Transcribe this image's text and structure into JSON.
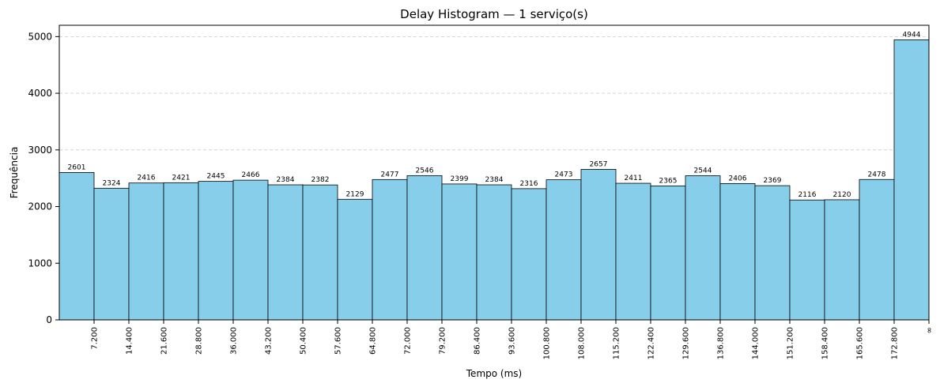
{
  "chart_data": {
    "type": "bar",
    "title": "Delay Histogram — 1 serviço(s)",
    "xlabel": "Tempo (ms)",
    "ylabel": "Frequência",
    "ylim": [
      0,
      5200
    ],
    "yticks": [
      0,
      1000,
      2000,
      3000,
      4000,
      5000
    ],
    "grid": "y-dashed",
    "bar_color": "#87CEEB",
    "edge_color": "#000000",
    "bin_edge_labels": [
      "7.200",
      "14.400",
      "21.600",
      "28.800",
      "36.000",
      "43.200",
      "50.400",
      "57.600",
      "64.800",
      "72.000",
      "79.200",
      "86.400",
      "93.600",
      "100.800",
      "108.000",
      "115.200",
      "122.400",
      "129.600",
      "136.800",
      "144.000",
      "151.200",
      "158.400",
      "165.600",
      "172.800",
      "∞"
    ],
    "values": [
      2601,
      2324,
      2416,
      2421,
      2445,
      2466,
      2384,
      2382,
      2129,
      2477,
      2546,
      2399,
      2384,
      2316,
      2473,
      2657,
      2411,
      2365,
      2544,
      2406,
      2369,
      2116,
      2120,
      2478,
      4944
    ]
  }
}
